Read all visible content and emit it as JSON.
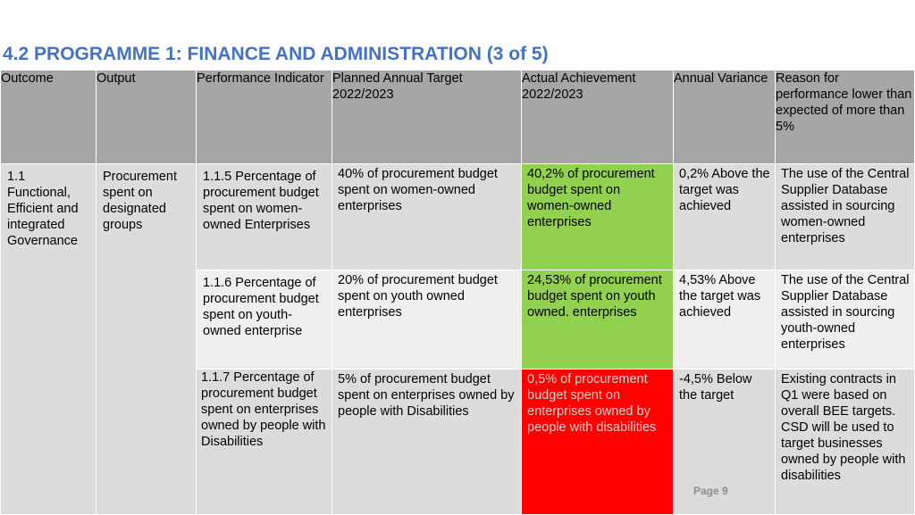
{
  "title": "4.2 PROGRAMME 1: FINANCE AND ADMINISTRATION (3 of 5)",
  "headers": {
    "outcome": "Outcome",
    "output": "Output",
    "indicator": "Performance Indicator",
    "planned": "Planned Annual Target 2022/2023",
    "actual": "Actual Achievement 2022/2023",
    "variance": "Annual Variance",
    "reason": "Reason for performance lower than expected of more than 5%"
  },
  "outcome": "1.1 Functional, Efficient and integrated Governance",
  "output": "Procurement spent on designated groups",
  "rows": [
    {
      "indicator": "1.1.5 Percentage of procurement budget spent on women-owned Enterprises",
      "planned": "40% of procurement budget spent on women-owned enterprises",
      "actual": "40,2% of procurement budget spent on women-owned enterprises",
      "variance": "0,2% Above the target was achieved",
      "reason": "The use of the Central Supplier Database assisted in sourcing women-owned enterprises"
    },
    {
      "indicator": "1.1.6 Percentage of procurement budget spent on youth-owned enterprise",
      "planned": "20% of procurement budget spent on youth owned enterprises",
      "actual": "24,53% of procurement budget spent on youth owned. enterprises",
      "variance": "4,53% Above the target was achieved",
      "reason": "The use of the Central Supplier Database assisted in sourcing youth-owned enterprises"
    },
    {
      "indicator": "1.1.7 Percentage of procurement budget spent on enterprises owned by people with Disabilities",
      "planned": "5% of procurement budget spent on enterprises owned by people with Disabilities",
      "actual": "0,5% of procurement budget spent on enterprises owned by people with disabilities",
      "variance": "-4,5% Below the target",
      "reason": "Existing contracts in Q1 were based on overall BEE targets. CSD will be used to target businesses owned by people with disabilities"
    }
  ],
  "page_label": "Page 9",
  "colors": {
    "title": "#4472c4",
    "header_bg": "#a6a6a6",
    "row_dark": "#dcdcdc",
    "row_light": "#efefef",
    "achieved": "#92d050",
    "not_achieved": "#ff0000"
  }
}
